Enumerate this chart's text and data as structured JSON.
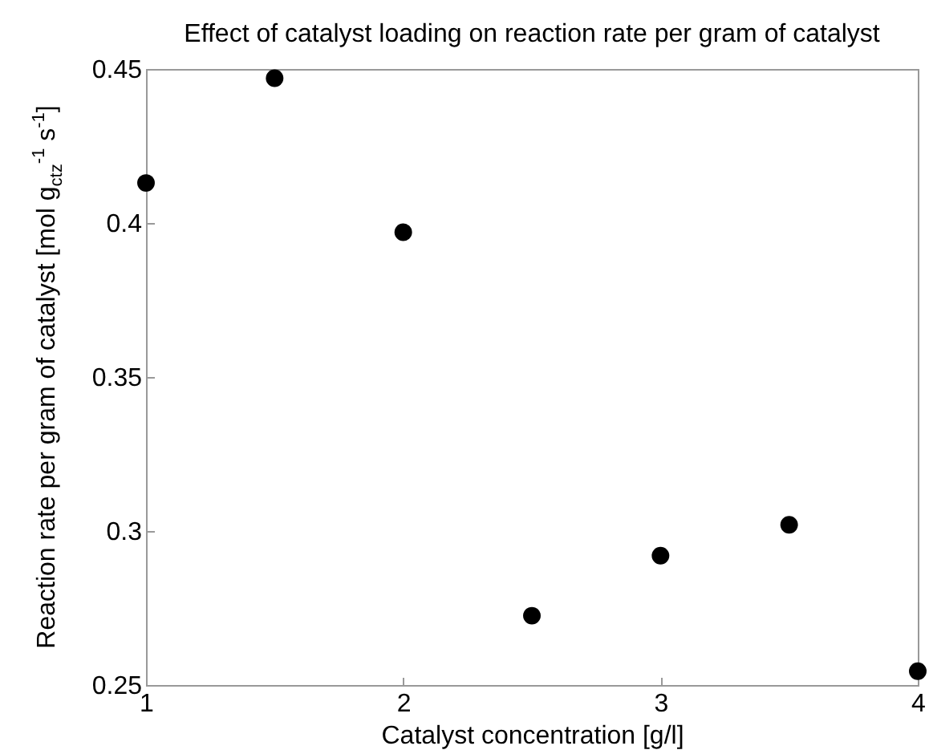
{
  "chart_data": {
    "type": "scatter",
    "title": "Effect of catalyst loading on reaction rate per gram of catalyst",
    "xlabel": "Catalyst concentration [g/l]",
    "ylabel": "Reaction rate per gram of catalyst [mol g$_{ctz}$$^{-1}$ s$^{-1}$]",
    "x": [
      1,
      1.5,
      2,
      2.5,
      3,
      3.5,
      4
    ],
    "series": [
      {
        "color": "#000000",
        "values": [
          0.413,
          0.447,
          0.397,
          0.2725,
          0.292,
          0.302,
          0.2545
        ]
      }
    ],
    "xlim": [
      1,
      4
    ],
    "xticks": [
      1,
      2,
      3,
      4
    ],
    "ylim": [
      0.25,
      0.45
    ],
    "yticks": [
      0.25,
      0.3,
      0.35,
      0.4,
      0.45
    ],
    "grid": false,
    "marker": "circle"
  }
}
